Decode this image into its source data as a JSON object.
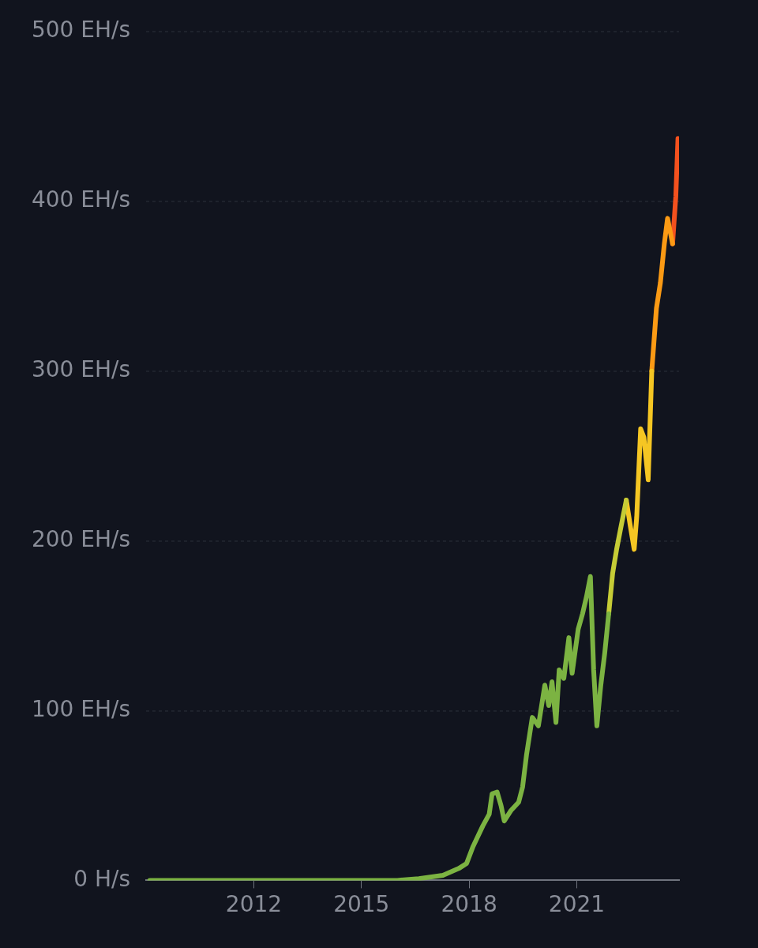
{
  "chart_data": {
    "type": "line",
    "series": [
      {
        "color": "#7cb342",
        "x": [
          2009.1,
          2011,
          2013,
          2015,
          2016,
          2016.6,
          2017.27,
          2017.71,
          2017.93,
          2018.11,
          2018.38,
          2018.56,
          2018.64,
          2018.78,
          2018.89,
          2018.98,
          2019.16,
          2019.38,
          2019.49,
          2019.6,
          2019.76,
          2019.93,
          2020.11,
          2020.22,
          2020.31,
          2020.42,
          2020.51,
          2020.64,
          2020.78,
          2020.87,
          2021.04,
          2021.16,
          2021.27,
          2021.38,
          2021.47,
          2021.56,
          2021.67,
          2021.78,
          2021.89
        ],
        "values": [
          0,
          0,
          0,
          0,
          0,
          1,
          3,
          7,
          10,
          20,
          32,
          39,
          51,
          52,
          44,
          35,
          41,
          46,
          55,
          74,
          96,
          91,
          115,
          103,
          117,
          93,
          124,
          119,
          143,
          122,
          148,
          157,
          167,
          179,
          124,
          91,
          115,
          134,
          157
        ]
      },
      {
        "color": "#c6cc36",
        "x": [
          2021.89,
          2022.0,
          2022.11,
          2022.22,
          2022.38
        ],
        "values": [
          157,
          181,
          195,
          207,
          224
        ]
      },
      {
        "color": "#f5c623",
        "x": [
          2022.38,
          2022.49,
          2022.6,
          2022.67,
          2022.78,
          2022.87,
          2022.99,
          2023.09
        ],
        "values": [
          224,
          209,
          195,
          214,
          266,
          261,
          236,
          300
        ]
      },
      {
        "color": "#fb9a14",
        "x": [
          2023.09,
          2023.22,
          2023.33,
          2023.44,
          2023.53,
          2023.67
        ],
        "values": [
          300,
          337,
          352,
          375,
          390,
          375
        ]
      },
      {
        "color": "#f4511e",
        "x": [
          2023.67,
          2023.76,
          2023.82
        ],
        "values": [
          375,
          403,
          437
        ]
      }
    ],
    "xlim": [
      2009,
      2023.85
    ],
    "xticks": [
      2012,
      2015,
      2018,
      2021
    ],
    "ylim": [
      0,
      500
    ],
    "yticks": [
      {
        "value": 0,
        "label": "0 H/s"
      },
      {
        "value": 100,
        "label": "100 EH/s"
      },
      {
        "value": 200,
        "label": "200 EH/s"
      },
      {
        "value": 300,
        "label": "300 EH/s"
      },
      {
        "value": 400,
        "label": "400 EH/s"
      },
      {
        "value": 500,
        "label": "500 EH/s"
      }
    ],
    "grid": "y",
    "legend": false
  }
}
